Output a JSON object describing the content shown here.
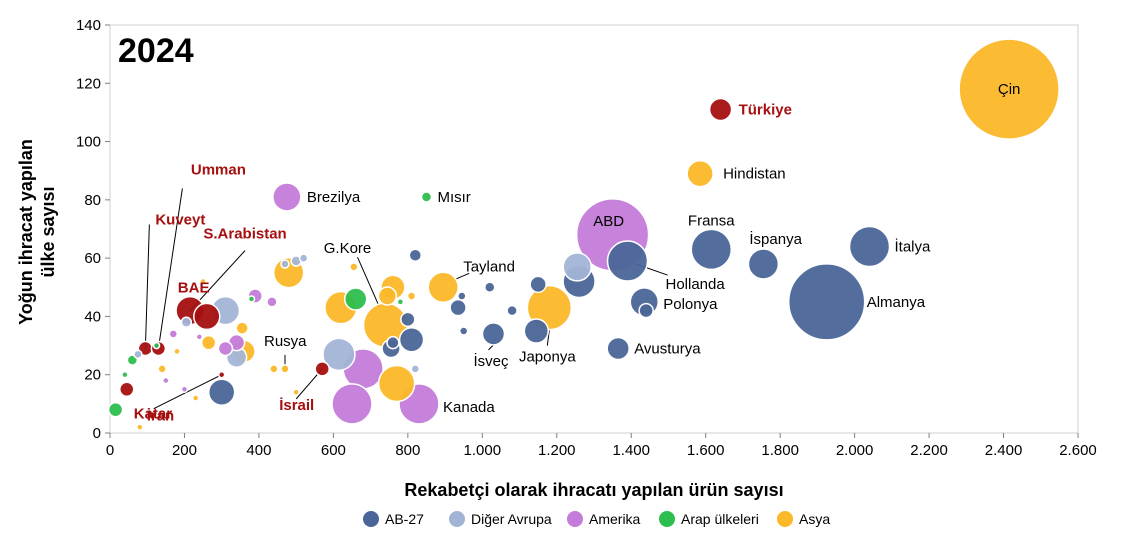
{
  "chart_data": {
    "type": "scatter",
    "subtype": "bubble",
    "title": "2024",
    "xlabel": "Rekabetçi olarak ihracatı yapılan ürün sayısı",
    "ylabel_lines": [
      "Yoğun ihracat yapılan",
      "ülke sayısı"
    ],
    "xlim": [
      0,
      2600
    ],
    "ylim": [
      0,
      140
    ],
    "x_ticks": [
      0,
      200,
      400,
      600,
      800,
      1000,
      1200,
      1400,
      1600,
      1800,
      2000,
      2200,
      2400,
      2600
    ],
    "x_tick_labels": [
      "0",
      "200",
      "400",
      "600",
      "800",
      "1.000",
      "1.200",
      "1.400",
      "1.600",
      "1.800",
      "2.000",
      "2.200",
      "2.400",
      "2.600"
    ],
    "y_ticks": [
      0,
      20,
      40,
      60,
      80,
      100,
      120,
      140
    ],
    "y_tick_labels": [
      "0",
      "20",
      "40",
      "60",
      "80",
      "100",
      "120",
      "140"
    ],
    "grid": false,
    "legend_position": "bottom",
    "groups": [
      {
        "key": "ab27",
        "name": "AB-27",
        "color": "#4a6698"
      },
      {
        "key": "avrupa",
        "name": "Diğer Avrupa",
        "color": "#a2b4d6"
      },
      {
        "key": "amerika",
        "name": "Amerika",
        "color": "#c47bd9"
      },
      {
        "key": "arap",
        "name": "Arap ülkeleri",
        "color": "#2dbe4e"
      },
      {
        "key": "asya",
        "name": "Asya",
        "color": "#fbb829"
      }
    ],
    "highlight_color": "#a50f0f",
    "points": [
      {
        "x": 2415,
        "y": 118,
        "size": 50,
        "group": "asya",
        "label": "Çin"
      },
      {
        "x": 1640,
        "y": 111,
        "size": 11,
        "group": "highlight",
        "label": "Türkiye"
      },
      {
        "x": 1585,
        "y": 89,
        "size": 13,
        "group": "asya",
        "label": "Hindistan"
      },
      {
        "x": 1350,
        "y": 68,
        "size": 36,
        "group": "amerika",
        "label": "ABD"
      },
      {
        "x": 1615,
        "y": 63,
        "size": 20,
        "group": "ab27",
        "label": "Fransa"
      },
      {
        "x": 1755,
        "y": 58,
        "size": 15,
        "group": "ab27",
        "label": "İspanya"
      },
      {
        "x": 2040,
        "y": 64,
        "size": 20,
        "group": "ab27",
        "label": "İtalya"
      },
      {
        "x": 1925,
        "y": 45,
        "size": 38,
        "group": "ab27",
        "label": "Almanya"
      },
      {
        "x": 1390,
        "y": 59,
        "size": 20,
        "group": "ab27",
        "label": "Hollanda"
      },
      {
        "x": 1435,
        "y": 45,
        "size": 14,
        "group": "ab27",
        "label": "Polonya"
      },
      {
        "x": 1365,
        "y": 29,
        "size": 11,
        "group": "ab27",
        "label": "Avusturya"
      },
      {
        "x": 1180,
        "y": 43,
        "size": 22,
        "group": "asya",
        "label": "Japonya"
      },
      {
        "x": 1030,
        "y": 34,
        "size": 11,
        "group": "ab27",
        "label": "İsveç"
      },
      {
        "x": 895,
        "y": 50,
        "size": 15,
        "group": "asya",
        "label": "Tayland"
      },
      {
        "x": 740,
        "y": 37,
        "size": 22,
        "group": "asya",
        "label": "G.Kore"
      },
      {
        "x": 830,
        "y": 10,
        "size": 20,
        "group": "amerika",
        "label": "Kanada"
      },
      {
        "x": 475,
        "y": 81,
        "size": 14,
        "group": "amerika",
        "label": "Brezilya"
      },
      {
        "x": 850,
        "y": 81,
        "size": 5,
        "group": "arap",
        "label": "Mısır"
      },
      {
        "x": 470,
        "y": 22,
        "size": 4,
        "group": "asya",
        "label": "Rusya"
      },
      {
        "x": 45,
        "y": 15,
        "size": 7,
        "group": "highlight",
        "label": "Katar"
      },
      {
        "x": 260,
        "y": 40,
        "size": 13,
        "group": "highlight",
        "label": "BAE"
      },
      {
        "x": 95,
        "y": 29,
        "size": 7,
        "group": "highlight",
        "label": "Kuveyt"
      },
      {
        "x": 130,
        "y": 29,
        "size": 7,
        "group": "highlight",
        "label": "Umman"
      },
      {
        "x": 215,
        "y": 42,
        "size": 14,
        "group": "highlight",
        "label": "S.Arabistan"
      },
      {
        "x": 300,
        "y": 20,
        "size": 3,
        "group": "highlight",
        "label": "İran"
      },
      {
        "x": 570,
        "y": 22,
        "size": 7,
        "group": "highlight",
        "label": "İsrail"
      },
      {
        "x": 1255,
        "y": 57,
        "size": 14,
        "group": "avrupa",
        "label": ""
      },
      {
        "x": 1260,
        "y": 52,
        "size": 16,
        "group": "ab27",
        "label": ""
      },
      {
        "x": 1150,
        "y": 51,
        "size": 8,
        "group": "ab27",
        "label": ""
      },
      {
        "x": 1145,
        "y": 35,
        "size": 12,
        "group": "ab27",
        "label": ""
      },
      {
        "x": 1440,
        "y": 42,
        "size": 7,
        "group": "ab27",
        "label": ""
      },
      {
        "x": 1020,
        "y": 50,
        "size": 5,
        "group": "ab27",
        "label": ""
      },
      {
        "x": 1080,
        "y": 42,
        "size": 5,
        "group": "ab27",
        "label": ""
      },
      {
        "x": 935,
        "y": 43,
        "size": 8,
        "group": "ab27",
        "label": ""
      },
      {
        "x": 945,
        "y": 47,
        "size": 4,
        "group": "ab27",
        "label": ""
      },
      {
        "x": 950,
        "y": 35,
        "size": 4,
        "group": "ab27",
        "label": ""
      },
      {
        "x": 820,
        "y": 61,
        "size": 6,
        "group": "ab27",
        "label": ""
      },
      {
        "x": 800,
        "y": 39,
        "size": 7,
        "group": "ab27",
        "label": ""
      },
      {
        "x": 810,
        "y": 32,
        "size": 12,
        "group": "ab27",
        "label": ""
      },
      {
        "x": 755,
        "y": 29,
        "size": 9,
        "group": "ab27",
        "label": ""
      },
      {
        "x": 760,
        "y": 31,
        "size": 6,
        "group": "ab27",
        "label": ""
      },
      {
        "x": 300,
        "y": 14,
        "size": 13,
        "group": "ab27",
        "label": ""
      },
      {
        "x": 310,
        "y": 42,
        "size": 14,
        "group": "avrupa",
        "label": ""
      },
      {
        "x": 615,
        "y": 27,
        "size": 16,
        "group": "avrupa",
        "label": ""
      },
      {
        "x": 340,
        "y": 26,
        "size": 10,
        "group": "avrupa",
        "label": ""
      },
      {
        "x": 500,
        "y": 59,
        "size": 5,
        "group": "avrupa",
        "label": ""
      },
      {
        "x": 520,
        "y": 60,
        "size": 4,
        "group": "avrupa",
        "label": ""
      },
      {
        "x": 470,
        "y": 58,
        "size": 4,
        "group": "avrupa",
        "label": ""
      },
      {
        "x": 820,
        "y": 22,
        "size": 4,
        "group": "avrupa",
        "label": ""
      },
      {
        "x": 205,
        "y": 38,
        "size": 5,
        "group": "avrupa",
        "label": ""
      },
      {
        "x": 75,
        "y": 27,
        "size": 4,
        "group": "avrupa",
        "label": ""
      },
      {
        "x": 680,
        "y": 22,
        "size": 20,
        "group": "amerika",
        "label": ""
      },
      {
        "x": 650,
        "y": 10,
        "size": 20,
        "group": "amerika",
        "label": ""
      },
      {
        "x": 390,
        "y": 47,
        "size": 7,
        "group": "amerika",
        "label": ""
      },
      {
        "x": 435,
        "y": 45,
        "size": 5,
        "group": "amerika",
        "label": ""
      },
      {
        "x": 310,
        "y": 29,
        "size": 7,
        "group": "amerika",
        "label": ""
      },
      {
        "x": 340,
        "y": 31,
        "size": 8,
        "group": "amerika",
        "label": ""
      },
      {
        "x": 170,
        "y": 34,
        "size": 4,
        "group": "amerika",
        "label": ""
      },
      {
        "x": 200,
        "y": 15,
        "size": 3,
        "group": "amerika",
        "label": ""
      },
      {
        "x": 150,
        "y": 18,
        "size": 3,
        "group": "amerika",
        "label": ""
      },
      {
        "x": 240,
        "y": 33,
        "size": 3,
        "group": "amerika",
        "label": ""
      },
      {
        "x": 660,
        "y": 46,
        "size": 11,
        "group": "arap",
        "label": ""
      },
      {
        "x": 15,
        "y": 8,
        "size": 7,
        "group": "arap",
        "label": ""
      },
      {
        "x": 60,
        "y": 25,
        "size": 5,
        "group": "arap",
        "label": ""
      },
      {
        "x": 380,
        "y": 46,
        "size": 3,
        "group": "arap",
        "label": ""
      },
      {
        "x": 780,
        "y": 45,
        "size": 3,
        "group": "arap",
        "label": ""
      },
      {
        "x": 40,
        "y": 20,
        "size": 3,
        "group": "arap",
        "label": ""
      },
      {
        "x": 125,
        "y": 30,
        "size": 3,
        "group": "arap",
        "label": ""
      },
      {
        "x": 480,
        "y": 55,
        "size": 15,
        "group": "asya",
        "label": ""
      },
      {
        "x": 620,
        "y": 43,
        "size": 16,
        "group": "asya",
        "label": ""
      },
      {
        "x": 770,
        "y": 17,
        "size": 18,
        "group": "asya",
        "label": ""
      },
      {
        "x": 760,
        "y": 50,
        "size": 12,
        "group": "asya",
        "label": ""
      },
      {
        "x": 745,
        "y": 47,
        "size": 9,
        "group": "asya",
        "label": ""
      },
      {
        "x": 360,
        "y": 28,
        "size": 11,
        "group": "asya",
        "label": ""
      },
      {
        "x": 265,
        "y": 31,
        "size": 7,
        "group": "asya",
        "label": ""
      },
      {
        "x": 355,
        "y": 36,
        "size": 6,
        "group": "asya",
        "label": ""
      },
      {
        "x": 810,
        "y": 47,
        "size": 4,
        "group": "asya",
        "label": ""
      },
      {
        "x": 655,
        "y": 57,
        "size": 4,
        "group": "asya",
        "label": ""
      },
      {
        "x": 250,
        "y": 52,
        "size": 3,
        "group": "asya",
        "label": ""
      },
      {
        "x": 140,
        "y": 22,
        "size": 4,
        "group": "asya",
        "label": ""
      },
      {
        "x": 80,
        "y": 2,
        "size": 3,
        "group": "asya",
        "label": ""
      },
      {
        "x": 440,
        "y": 22,
        "size": 4,
        "group": "asya",
        "label": ""
      },
      {
        "x": 500,
        "y": 14,
        "size": 3,
        "group": "asya",
        "label": ""
      },
      {
        "x": 180,
        "y": 28,
        "size": 3,
        "group": "asya",
        "label": ""
      },
      {
        "x": 230,
        "y": 12,
        "size": 3,
        "group": "asya",
        "label": ""
      }
    ],
    "annotations": [
      {
        "text": "Çin",
        "class": "lbl",
        "ref": 0,
        "dx": 0,
        "dy": 5,
        "anchor": "middle"
      },
      {
        "text": "Türkiye",
        "class": "lbl-red",
        "ref": 1,
        "dx": 18,
        "dy": 5,
        "anchor": "start"
      },
      {
        "text": "Hindistan",
        "class": "lbl",
        "ref": 2,
        "dx": 23,
        "dy": 5,
        "anchor": "start"
      },
      {
        "text": "ABD",
        "class": "lbl",
        "ref": 3,
        "dx": -4,
        "dy": -9,
        "anchor": "middle"
      },
      {
        "text": "Fransa",
        "class": "lbl",
        "ref": 4,
        "dx": 0,
        "dy": -24,
        "anchor": "middle"
      },
      {
        "text": "İspanya",
        "class": "lbl",
        "ref": 5,
        "dx": -14,
        "dy": -20,
        "anchor": "start"
      },
      {
        "text": "İtalya",
        "class": "lbl",
        "ref": 6,
        "dx": 25,
        "dy": 5,
        "anchor": "start"
      },
      {
        "text": "Almanya",
        "class": "lbl",
        "ref": 7,
        "dx": 40,
        "dy": 5,
        "anchor": "start"
      },
      {
        "text": "Hollanda",
        "class": "lbl",
        "ref": 8,
        "dx": 38,
        "dy": 28,
        "anchor": "start"
      },
      {
        "text": "Polonya",
        "class": "lbl",
        "ref": 9,
        "dx": 19,
        "dy": 7,
        "anchor": "start"
      },
      {
        "text": "Avusturya",
        "class": "lbl",
        "ref": 10,
        "dx": 16,
        "dy": 5,
        "anchor": "start"
      },
      {
        "text": "Japonya",
        "class": "lbl",
        "ref": 11,
        "dx": -2,
        "dy": 54,
        "anchor": "middle"
      },
      {
        "text": "İsveç",
        "class": "lbl",
        "ref": 12,
        "dx": -20,
        "dy": 32,
        "anchor": "start"
      },
      {
        "text": "Tayland",
        "class": "lbl",
        "ref": 13,
        "dx": 20,
        "dy": -16,
        "anchor": "start"
      },
      {
        "text": "G.Kore",
        "class": "lbl",
        "ref": 14,
        "dx": -38,
        "dy": -72,
        "anchor": "middle"
      },
      {
        "text": "Kanada",
        "class": "lbl",
        "ref": 15,
        "dx": 24,
        "dy": 8,
        "anchor": "start"
      },
      {
        "text": "Brezilya",
        "class": "lbl",
        "ref": 16,
        "dx": 20,
        "dy": 5,
        "anchor": "start"
      },
      {
        "text": "Mısır",
        "class": "lbl",
        "ref": 17,
        "dx": 11,
        "dy": 5,
        "anchor": "start"
      },
      {
        "text": "Rusya",
        "class": "lbl",
        "ref": 18,
        "dx": -21,
        "dy": -23,
        "anchor": "start"
      },
      {
        "text": "Katar",
        "class": "lbl-red",
        "ref": 19,
        "dx": 7,
        "dy": 29,
        "anchor": "start"
      },
      {
        "text": "BAE",
        "class": "lbl-red",
        "ref": 20,
        "dx": -29,
        "dy": -24,
        "anchor": "start"
      },
      {
        "text": "Kuveyt",
        "class": "lbl-red",
        "ref": 21,
        "dx": 35,
        "dy": -124,
        "anchor": "middle"
      },
      {
        "text": "Umman",
        "class": "lbl-red",
        "ref": 22,
        "dx": 60,
        "dy": -174,
        "anchor": "middle"
      },
      {
        "text": "S.Arabistan",
        "class": "lbl-red",
        "ref": 23,
        "dx": 55,
        "dy": -72,
        "anchor": "middle"
      },
      {
        "text": "İran",
        "class": "lbl-red",
        "ref": 24,
        "dx": -75,
        "dy": 46,
        "anchor": "start"
      },
      {
        "text": "İsrail",
        "class": "lbl-red",
        "ref": 25,
        "dx": -43,
        "dy": 41,
        "anchor": "start"
      }
    ],
    "leaders": [
      {
        "ref": 8,
        "fx": 0.0,
        "fy": 0.0,
        "tx": 40,
        "ty": 14
      },
      {
        "ref": 11,
        "fx": 0,
        "fy": 22,
        "tx": -2,
        "ty": 38
      },
      {
        "ref": 12,
        "fx": 0,
        "fy": 11,
        "tx": -5,
        "ty": 16
      },
      {
        "ref": 13,
        "fx": 12,
        "fy": -8,
        "tx": 26,
        "ty": -14
      },
      {
        "ref": 14,
        "fx": -6,
        "fy": -18,
        "tx": -28,
        "ty": -68
      },
      {
        "ref": 18,
        "fx": 0,
        "fy": 0,
        "tx": 0,
        "ty": -14
      },
      {
        "ref": 21,
        "fx": 0,
        "fy": 0,
        "tx": 4,
        "ty": -124
      },
      {
        "ref": 22,
        "fx": 0,
        "fy": 0,
        "tx": 24,
        "ty": -160
      },
      {
        "ref": 23,
        "fx": 0,
        "fy": 0,
        "tx": 55,
        "ty": -60
      },
      {
        "ref": 24,
        "fx": 0,
        "fy": 0,
        "tx": -68,
        "ty": 34
      },
      {
        "ref": 25,
        "fx": 0,
        "fy": 0,
        "tx": -26,
        "ty": 30
      }
    ]
  }
}
